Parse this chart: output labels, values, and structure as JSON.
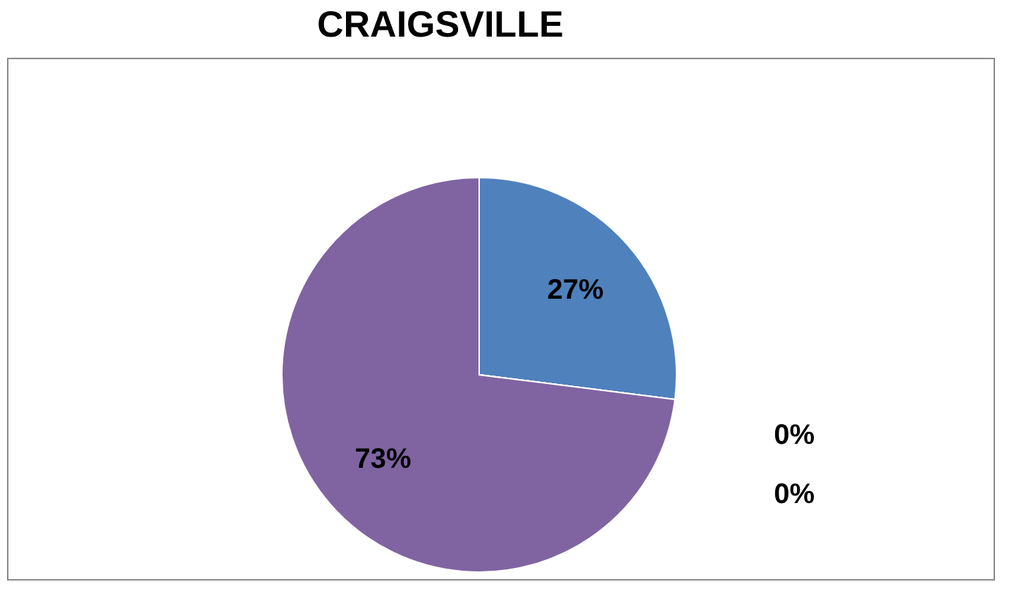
{
  "chart_data": {
    "type": "pie",
    "title": "CRAIGSVILLE",
    "categories": [
      null,
      null,
      null,
      null
    ],
    "values": [
      27,
      0,
      0,
      73
    ],
    "value_labels": [
      "27%",
      "0%",
      "0%",
      "73%"
    ],
    "colors": [
      "#4f81bd",
      "#c0504d",
      "#4f6228",
      "#8064a2"
    ],
    "legend": false
  }
}
